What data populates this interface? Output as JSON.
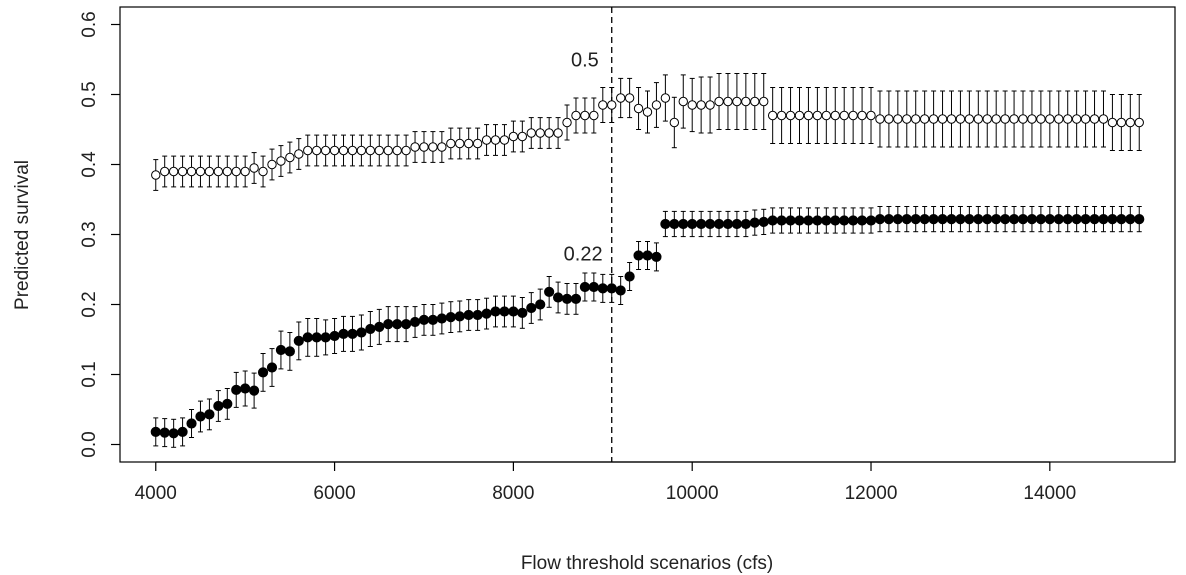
{
  "chart_data": {
    "type": "scatter",
    "xlabel": "Flow threshold scenarios (cfs)",
    "ylabel": "Predicted survival",
    "xlim": [
      3600,
      15400
    ],
    "ylim": [
      -0.025,
      0.625
    ],
    "xticks": [
      4000,
      6000,
      8000,
      10000,
      12000,
      14000
    ],
    "xtick_labels": [
      "4000",
      "6000",
      "8000",
      "10000",
      "12000",
      "14000"
    ],
    "yticks": [
      0.0,
      0.1,
      0.2,
      0.3,
      0.4,
      0.5,
      0.6
    ],
    "ytick_labels": [
      "0.0",
      "0.1",
      "0.2",
      "0.3",
      "0.4",
      "0.5",
      "0.6"
    ],
    "grid": false,
    "vline": 9100,
    "annotations": [
      {
        "text": "0.5",
        "x": 8800,
        "y": 0.54
      },
      {
        "text": "0.22",
        "x": 8780,
        "y": 0.263
      }
    ],
    "x_start": 4000,
    "x_step": 100,
    "series": [
      {
        "marker": "open-circle",
        "color": "#000000",
        "values": [
          0.385,
          0.39,
          0.39,
          0.39,
          0.39,
          0.39,
          0.39,
          0.39,
          0.39,
          0.39,
          0.39,
          0.395,
          0.39,
          0.4,
          0.405,
          0.41,
          0.415,
          0.42,
          0.42,
          0.42,
          0.42,
          0.42,
          0.42,
          0.42,
          0.42,
          0.42,
          0.42,
          0.42,
          0.42,
          0.425,
          0.425,
          0.425,
          0.425,
          0.43,
          0.43,
          0.43,
          0.43,
          0.435,
          0.435,
          0.435,
          0.44,
          0.44,
          0.445,
          0.445,
          0.445,
          0.445,
          0.46,
          0.47,
          0.47,
          0.47,
          0.485,
          0.485,
          0.495,
          0.495,
          0.48,
          0.475,
          0.485,
          0.495,
          0.46,
          0.49,
          0.485,
          0.485,
          0.485,
          0.49,
          0.49,
          0.49,
          0.49,
          0.49,
          0.49,
          0.47,
          0.47,
          0.47,
          0.47,
          0.47,
          0.47,
          0.47,
          0.47,
          0.47,
          0.47,
          0.47,
          0.47,
          0.465,
          0.465,
          0.465,
          0.465,
          0.465,
          0.465,
          0.465,
          0.465,
          0.465,
          0.465,
          0.465,
          0.465,
          0.465,
          0.465,
          0.465,
          0.465,
          0.465,
          0.465,
          0.465,
          0.465,
          0.465,
          0.465,
          0.465,
          0.465,
          0.465,
          0.465,
          0.46,
          0.46,
          0.46,
          0.46
        ],
        "err": [
          0.022,
          0.022,
          0.022,
          0.022,
          0.022,
          0.022,
          0.022,
          0.022,
          0.022,
          0.022,
          0.022,
          0.022,
          0.022,
          0.022,
          0.022,
          0.022,
          0.022,
          0.022,
          0.022,
          0.022,
          0.022,
          0.022,
          0.022,
          0.022,
          0.022,
          0.022,
          0.022,
          0.022,
          0.022,
          0.022,
          0.022,
          0.022,
          0.022,
          0.022,
          0.022,
          0.022,
          0.022,
          0.022,
          0.022,
          0.022,
          0.022,
          0.022,
          0.022,
          0.022,
          0.022,
          0.022,
          0.025,
          0.025,
          0.025,
          0.025,
          0.025,
          0.025,
          0.028,
          0.028,
          0.03,
          0.03,
          0.032,
          0.033,
          0.036,
          0.038,
          0.038,
          0.04,
          0.04,
          0.04,
          0.04,
          0.04,
          0.04,
          0.04,
          0.04,
          0.04,
          0.04,
          0.04,
          0.04,
          0.04,
          0.04,
          0.04,
          0.04,
          0.04,
          0.04,
          0.04,
          0.04,
          0.04,
          0.04,
          0.04,
          0.04,
          0.04,
          0.04,
          0.04,
          0.04,
          0.04,
          0.04,
          0.04,
          0.04,
          0.04,
          0.04,
          0.04,
          0.04,
          0.04,
          0.04,
          0.04,
          0.04,
          0.04,
          0.04,
          0.04,
          0.04,
          0.04,
          0.04,
          0.04,
          0.04,
          0.04,
          0.04
        ]
      },
      {
        "marker": "filled-circle",
        "color": "#000000",
        "values": [
          0.018,
          0.017,
          0.016,
          0.018,
          0.03,
          0.04,
          0.043,
          0.055,
          0.058,
          0.078,
          0.08,
          0.077,
          0.103,
          0.11,
          0.135,
          0.133,
          0.148,
          0.153,
          0.153,
          0.153,
          0.155,
          0.158,
          0.158,
          0.16,
          0.165,
          0.168,
          0.172,
          0.172,
          0.172,
          0.175,
          0.178,
          0.178,
          0.18,
          0.182,
          0.183,
          0.185,
          0.185,
          0.187,
          0.19,
          0.19,
          0.19,
          0.188,
          0.195,
          0.2,
          0.218,
          0.21,
          0.208,
          0.208,
          0.225,
          0.225,
          0.223,
          0.223,
          0.22,
          0.24,
          0.27,
          0.27,
          0.268,
          0.315,
          0.315,
          0.315,
          0.315,
          0.315,
          0.315,
          0.315,
          0.315,
          0.315,
          0.315,
          0.317,
          0.318,
          0.32,
          0.32,
          0.32,
          0.32,
          0.32,
          0.32,
          0.32,
          0.32,
          0.32,
          0.32,
          0.32,
          0.32,
          0.322,
          0.322,
          0.322,
          0.322,
          0.322,
          0.322,
          0.322,
          0.322,
          0.322,
          0.322,
          0.322,
          0.322,
          0.322,
          0.322,
          0.322,
          0.322,
          0.322,
          0.322,
          0.322,
          0.322,
          0.322,
          0.322,
          0.322,
          0.322,
          0.322,
          0.322,
          0.322,
          0.322,
          0.322,
          0.322
        ],
        "err": [
          0.02,
          0.02,
          0.02,
          0.02,
          0.02,
          0.022,
          0.022,
          0.022,
          0.022,
          0.025,
          0.025,
          0.025,
          0.027,
          0.027,
          0.027,
          0.027,
          0.027,
          0.027,
          0.027,
          0.025,
          0.025,
          0.025,
          0.025,
          0.025,
          0.025,
          0.025,
          0.025,
          0.025,
          0.025,
          0.022,
          0.022,
          0.022,
          0.022,
          0.022,
          0.022,
          0.022,
          0.022,
          0.022,
          0.022,
          0.022,
          0.022,
          0.022,
          0.022,
          0.022,
          0.022,
          0.022,
          0.022,
          0.022,
          0.02,
          0.02,
          0.02,
          0.02,
          0.02,
          0.02,
          0.02,
          0.02,
          0.02,
          0.018,
          0.018,
          0.018,
          0.018,
          0.018,
          0.018,
          0.018,
          0.018,
          0.018,
          0.018,
          0.018,
          0.018,
          0.018,
          0.018,
          0.018,
          0.018,
          0.018,
          0.018,
          0.018,
          0.018,
          0.018,
          0.018,
          0.018,
          0.018,
          0.018,
          0.018,
          0.018,
          0.018,
          0.018,
          0.018,
          0.018,
          0.018,
          0.018,
          0.018,
          0.018,
          0.018,
          0.018,
          0.018,
          0.018,
          0.018,
          0.018,
          0.018,
          0.018,
          0.018,
          0.018,
          0.018,
          0.018,
          0.018,
          0.018,
          0.018,
          0.018,
          0.018,
          0.018,
          0.018
        ]
      }
    ]
  }
}
